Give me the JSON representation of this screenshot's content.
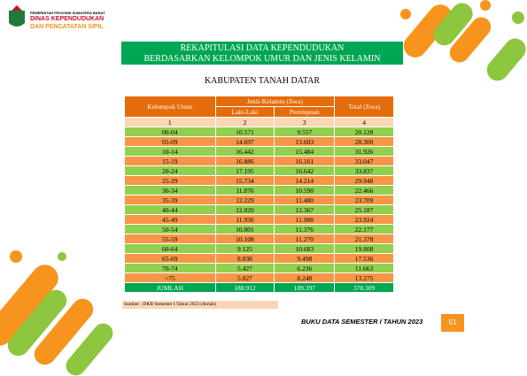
{
  "header": {
    "province": "PEMERINTAH PROVINSI SUMATERA BARAT",
    "agency_line1": "DINAS KEPENDUDUKAN",
    "agency_line2": "DAN PENCATATAN SIPIL"
  },
  "title": {
    "line1": "REKAPITULASI DATA KEPENDUDUKAN",
    "line2": "BERDASARKAN KELOMPOK UMUR DAN JENIS KELAMIN",
    "region": "KABUPATEN TANAH DATAR"
  },
  "table": {
    "headers": {
      "age": "Kelompok Umur",
      "sex": "Jenis Kelamin (Jiwa)",
      "male": "Laki-Laki",
      "female": "Perempuan",
      "total": "Total (Jiwa)"
    },
    "column_numbers": [
      "1",
      "2",
      "3",
      "4"
    ],
    "rows": [
      [
        "00-04",
        "10.571",
        "9.557",
        "20.128"
      ],
      [
        "05-09",
        "14.697",
        "13.603",
        "28.300"
      ],
      [
        "10-14",
        "16.442",
        "15.484",
        "31.926"
      ],
      [
        "15-19",
        "16.886",
        "16.161",
        "33.047"
      ],
      [
        "20-24",
        "17.195",
        "16.642",
        "33.837"
      ],
      [
        "25-29",
        "15.734",
        "14.214",
        "29.948"
      ],
      [
        "30-34",
        "11.876",
        "10.590",
        "22.466"
      ],
      [
        "35-39",
        "12.229",
        "11.480",
        "23.709"
      ],
      [
        "40-44",
        "12.820",
        "12.367",
        "25.187"
      ],
      [
        "45-49",
        "11.936",
        "11.988",
        "23.924"
      ],
      [
        "50-54",
        "10.801",
        "11.376",
        "22.177"
      ],
      [
        "55-59",
        "10.108",
        "11.270",
        "21.378"
      ],
      [
        "60-64",
        "9.125",
        "10.683",
        "19.808"
      ],
      [
        "65-69",
        "8.038",
        "9.498",
        "17.536"
      ],
      [
        "70-74",
        "5.427",
        "6.236",
        "11.663"
      ],
      [
        ">75",
        "5.027",
        "8.248",
        "13.275"
      ]
    ],
    "total_row": [
      "JUMLAH",
      "188.912",
      "189.397",
      "378.309"
    ]
  },
  "source": "Sumber : DKB Semester I Tahun 2023 (diolah)",
  "footer": {
    "book": "BUKU DATA SEMESTER I TAHUN 2023",
    "page": "51"
  }
}
